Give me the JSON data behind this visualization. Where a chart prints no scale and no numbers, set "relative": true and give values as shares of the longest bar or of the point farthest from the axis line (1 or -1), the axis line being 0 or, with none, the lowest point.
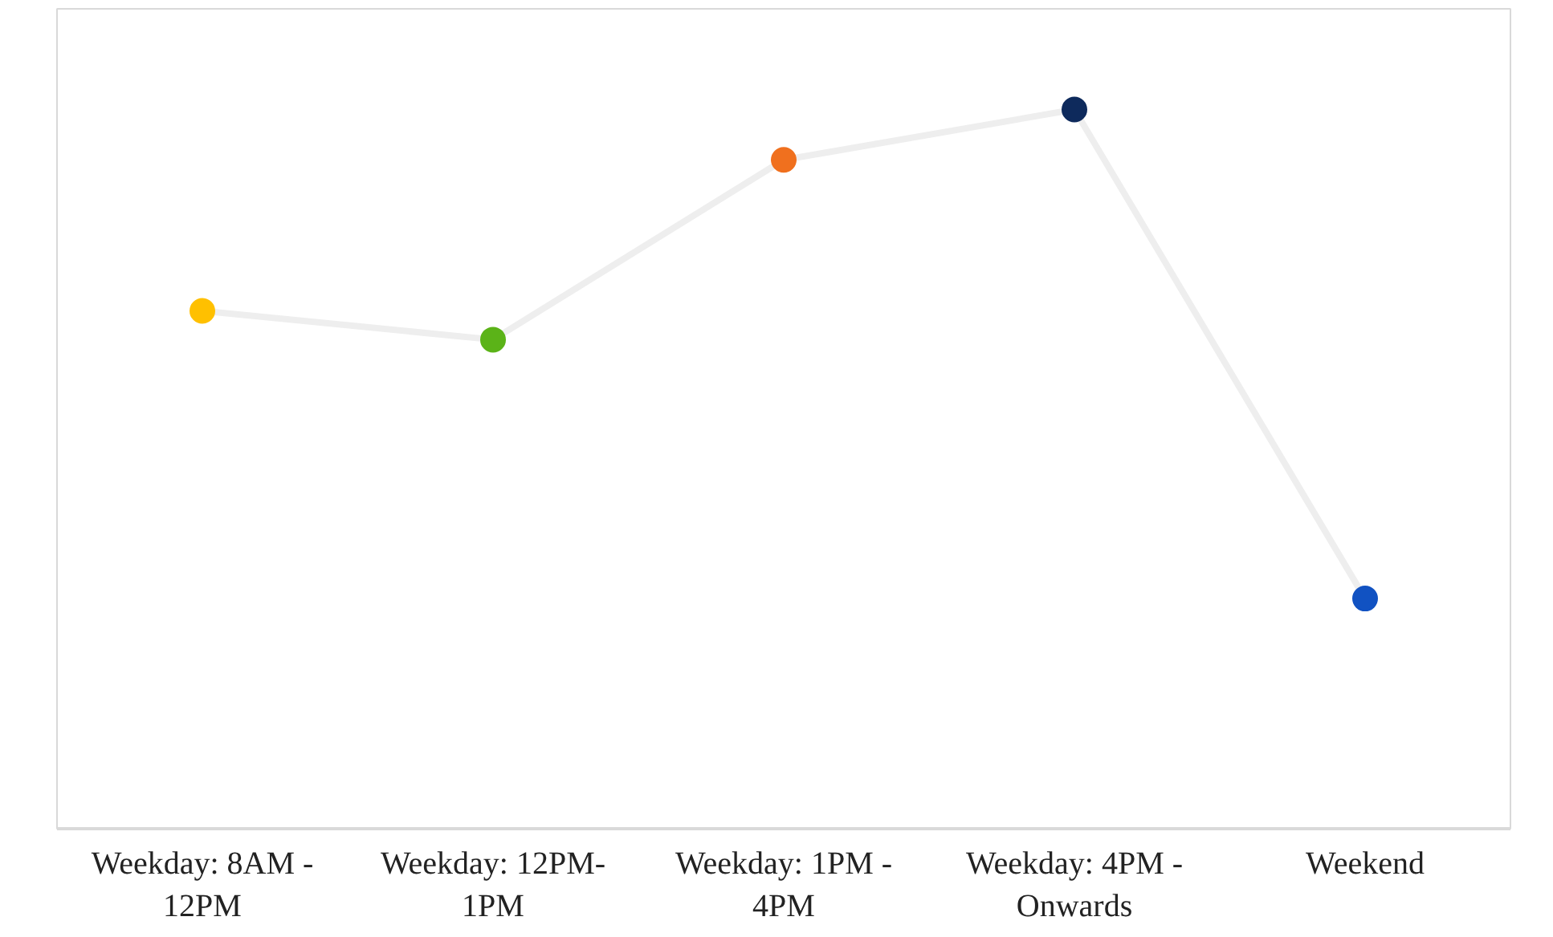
{
  "chart_data": {
    "type": "line",
    "relative": true,
    "categories": [
      "Weekday: 8AM - 12PM",
      "Weekday: 12PM- 1PM",
      "Weekday: 1PM - 4PM",
      "Weekday: 4PM - Onwards",
      "Weekend"
    ],
    "series": [
      {
        "color": "#eeeeee",
        "colors": [
          "#ffc000",
          "#5bb318",
          "#f0701e",
          "#0e2a5c",
          "#1152c2"
        ],
        "values": [
          0.72,
          0.68,
          0.93,
          1,
          0.32
        ]
      }
    ],
    "marker": "circle",
    "line_style": "solid",
    "grid": false
  }
}
